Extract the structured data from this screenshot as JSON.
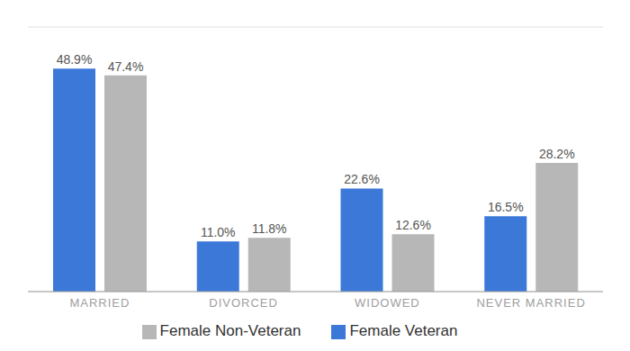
{
  "chart_data": {
    "type": "bar",
    "categories": [
      "MARRIED",
      "DIVORCED",
      "WIDOWED",
      "NEVER MARRIED"
    ],
    "series": [
      {
        "name": "Female Veteran",
        "color": "#3c78d8",
        "values": [
          48.9,
          11.0,
          22.6,
          16.5
        ],
        "value_labels": [
          "48.9%",
          "11.0%",
          "22.6%",
          "16.5%"
        ]
      },
      {
        "name": "Female Non-Veteran",
        "color": "#b7b7b7",
        "values": [
          47.4,
          11.8,
          12.6,
          28.2
        ],
        "value_labels": [
          "47.4%",
          "11.8%",
          "12.6%",
          "28.2%"
        ]
      }
    ],
    "ylim": [
      0,
      58
    ],
    "yticks": [
      0,
      14.5,
      29,
      43.5,
      58
    ],
    "grid": true,
    "legend": "bottom",
    "data_labels": true,
    "tick_labels": "x"
  }
}
